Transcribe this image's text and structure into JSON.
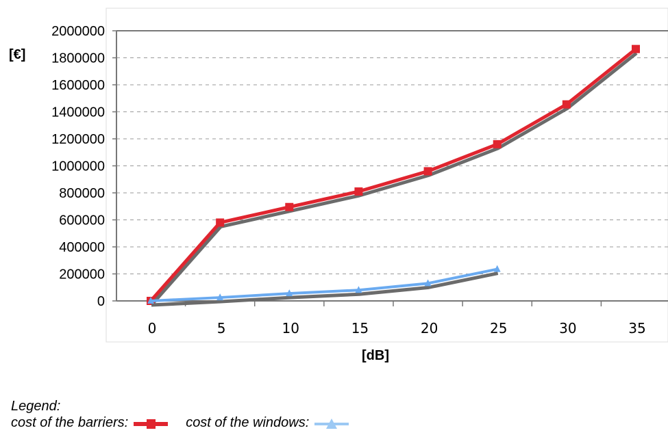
{
  "chart_data": {
    "type": "line",
    "ylabel": "[€]",
    "xlabel": "[dB]",
    "x": [
      0,
      5,
      10,
      15,
      20,
      25,
      30,
      35
    ],
    "xticks": [
      "0",
      "5",
      "10",
      "15",
      "20",
      "25",
      "30",
      "35"
    ],
    "yticks": [
      "0",
      "200000",
      "400000",
      "600000",
      "800000",
      "1000000",
      "1200000",
      "1400000",
      "1600000",
      "1800000",
      "2000000"
    ],
    "ylim": [
      0,
      2000000
    ],
    "xlim": [
      0,
      35
    ],
    "grid": "horizontal dashed",
    "series": [
      {
        "name": "cost of the barriers:",
        "color": "#e0252f",
        "marker": "square",
        "x": [
          0,
          5,
          10,
          15,
          20,
          25,
          30,
          35
        ],
        "values": [
          0,
          580000,
          695000,
          810000,
          960000,
          1160000,
          1455000,
          1865000
        ]
      },
      {
        "name": "cost of the windows:",
        "color": "#6aaaf0",
        "marker": "triangle",
        "x": [
          0,
          5,
          10,
          15,
          20,
          25
        ],
        "values": [
          0,
          25000,
          55000,
          80000,
          130000,
          235000
        ]
      }
    ]
  },
  "legend": {
    "title": "Legend:",
    "items": [
      {
        "label": "cost of the barriers:",
        "color": "#e0252f"
      },
      {
        "label": "cost of the windows:",
        "color": "#9cc9f4"
      }
    ]
  }
}
